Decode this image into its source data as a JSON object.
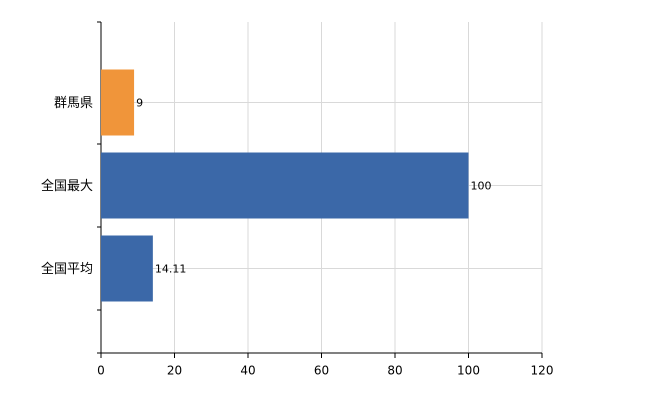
{
  "chart_data": {
    "type": "hbar",
    "categories": [
      "群馬県",
      "全国最大",
      "全国平均"
    ],
    "values": [
      9,
      100,
      14.11
    ],
    "colors": [
      "#f0953a",
      "#3b68a8",
      "#3b68a8"
    ],
    "xlim": [
      0,
      120
    ],
    "xticks": [
      0,
      20,
      40,
      60,
      80,
      100,
      120
    ],
    "grid": true
  }
}
